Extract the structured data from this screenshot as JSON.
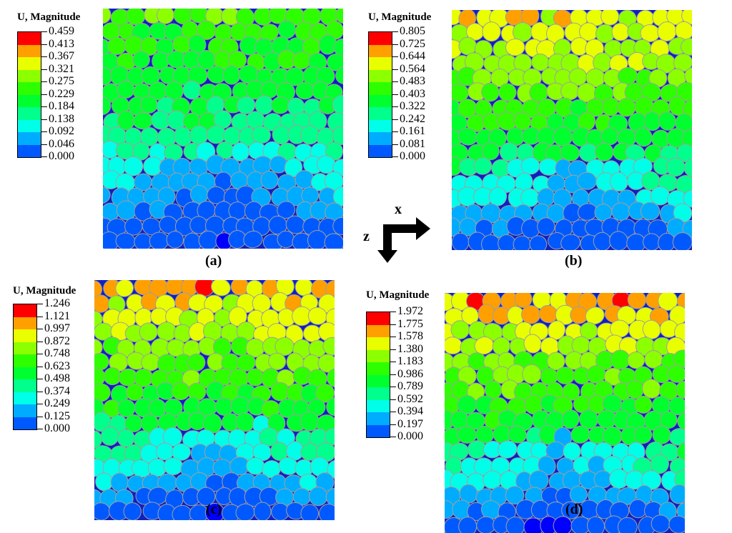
{
  "panels": [
    {
      "id": "a",
      "legend_title": "U, Magnitude",
      "legend_values": [
        "0.459",
        "0.413",
        "0.367",
        "0.321",
        "0.275",
        "0.229",
        "0.184",
        "0.138",
        "0.092",
        "0.046",
        "0.000"
      ],
      "caption": "(a)",
      "field": [
        0.29,
        0.24,
        0.19,
        0.12,
        0.03
      ]
    },
    {
      "id": "b",
      "legend_title": "U, Magnitude",
      "legend_values": [
        "0.805",
        "0.725",
        "0.644",
        "0.564",
        "0.483",
        "0.403",
        "0.322",
        "0.242",
        "0.161",
        "0.081",
        "0.000"
      ],
      "caption": "(b)",
      "field": [
        0.66,
        0.56,
        0.42,
        0.3,
        0.05
      ]
    },
    {
      "id": "c",
      "legend_title": "U, Magnitude",
      "legend_values": [
        "1.246",
        "1.121",
        "0.997",
        "0.872",
        "0.748",
        "0.623",
        "0.498",
        "0.374",
        "0.249",
        "0.125",
        "0.000"
      ],
      "caption": "(c)",
      "field": [
        1.12,
        0.88,
        0.68,
        0.48,
        0.06
      ]
    },
    {
      "id": "d",
      "legend_title": "U, Magnitude",
      "legend_values": [
        "1.972",
        "1.775",
        "1.578",
        "1.380",
        "1.183",
        "0.986",
        "0.789",
        "0.592",
        "0.394",
        "0.197",
        "0.000"
      ],
      "caption": "(d)",
      "field": [
        1.78,
        1.4,
        1.05,
        0.74,
        0.08
      ]
    }
  ],
  "colormap": [
    "#0000ff",
    "#0059ff",
    "#00acff",
    "#00ffe9",
    "#00ff8c",
    "#00ff2e",
    "#2eff00",
    "#8cff00",
    "#e9ff00",
    "#ff9f00",
    "#ff0000"
  ],
  "axes": {
    "x_label": "x",
    "z_label": "z"
  }
}
